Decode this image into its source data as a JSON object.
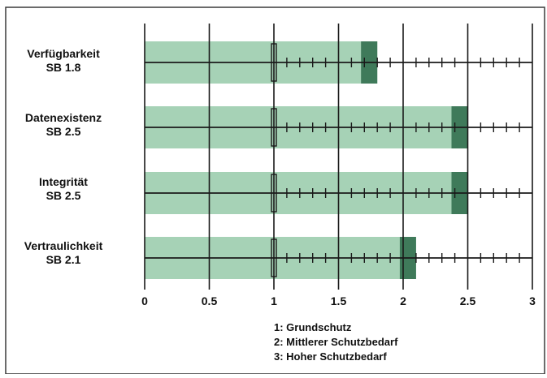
{
  "chart_data": {
    "type": "bar",
    "orientation": "horizontal",
    "categories": [
      "Verfügbarkeit",
      "Datenexistenz",
      "Integrität",
      "Vertraulichkeit"
    ],
    "category_sublabels": [
      "SB 1.8",
      "SB 2.5",
      "SB 2.5",
      "SB 2.1"
    ],
    "values": [
      1.8,
      2.5,
      2.5,
      2.1
    ],
    "xlim": [
      0,
      3
    ],
    "x_ticks": [
      "0",
      "0.5",
      "1",
      "1.5",
      "2",
      "2.5",
      "3"
    ],
    "x_tick_values": [
      0,
      0.5,
      1,
      1.5,
      2,
      2.5,
      3
    ],
    "minor_tick_step": 0.1,
    "grid": true,
    "legend": {
      "placement": "bottom-center",
      "entries": [
        "1: Grundschutz",
        "2: Mittlerer Schutzbedarf",
        "3: Hoher Schutzbedarf"
      ]
    },
    "colors": {
      "bar": "#a6d2b6",
      "bar_end": "#3f7a5a",
      "axis": "#1a1a1a",
      "text": "#111111",
      "frame": "#3a3a3a"
    }
  }
}
